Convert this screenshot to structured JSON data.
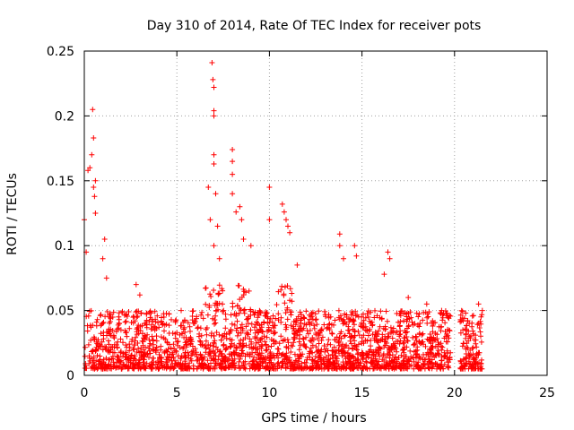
{
  "chart_data": {
    "type": "scatter",
    "title": "Day 310 of 2014, Rate Of TEC Index for receiver pots",
    "xlabel": "GPS time / hours",
    "ylabel": "ROTI / TECUs",
    "xlim": [
      0,
      25
    ],
    "ylim": [
      0,
      0.25
    ],
    "x_ticks": [
      0,
      5,
      10,
      15,
      20,
      25
    ],
    "x_tick_labels": [
      "0",
      "5",
      "10",
      "15",
      "20",
      "25"
    ],
    "y_ticks": [
      0,
      0.05,
      0.1,
      0.15,
      0.2,
      0.25
    ],
    "y_tick_labels": [
      "0",
      "0.05",
      "0.1",
      "0.15",
      "0.2",
      "0.25"
    ],
    "grid": true,
    "marker": "+",
    "series_color": "#ff0000",
    "dense_band": {
      "segments": [
        [
          0.0,
          19.8
        ],
        [
          20.3,
          21.5
        ]
      ],
      "typical_min": 0.005,
      "typical_max": 0.05,
      "note": "thousands of points; typical ROTI 0.005-0.05 TECU/min"
    },
    "notable_points": [
      {
        "x": 0.0,
        "y": 0.12
      },
      {
        "x": 0.1,
        "y": 0.095
      },
      {
        "x": 0.2,
        "y": 0.158
      },
      {
        "x": 0.3,
        "y": 0.16
      },
      {
        "x": 0.4,
        "y": 0.17
      },
      {
        "x": 0.45,
        "y": 0.205
      },
      {
        "x": 0.5,
        "y": 0.183
      },
      {
        "x": 0.5,
        "y": 0.145
      },
      {
        "x": 0.55,
        "y": 0.138
      },
      {
        "x": 0.6,
        "y": 0.125
      },
      {
        "x": 0.6,
        "y": 0.15
      },
      {
        "x": 1.0,
        "y": 0.09
      },
      {
        "x": 1.1,
        "y": 0.105
      },
      {
        "x": 1.2,
        "y": 0.075
      },
      {
        "x": 2.8,
        "y": 0.07
      },
      {
        "x": 3.0,
        "y": 0.062
      },
      {
        "x": 6.7,
        "y": 0.145
      },
      {
        "x": 6.8,
        "y": 0.12
      },
      {
        "x": 6.9,
        "y": 0.241
      },
      {
        "x": 6.95,
        "y": 0.228
      },
      {
        "x": 7.0,
        "y": 0.222
      },
      {
        "x": 7.0,
        "y": 0.204
      },
      {
        "x": 7.0,
        "y": 0.2
      },
      {
        "x": 7.0,
        "y": 0.17
      },
      {
        "x": 7.0,
        "y": 0.163
      },
      {
        "x": 7.1,
        "y": 0.14
      },
      {
        "x": 7.2,
        "y": 0.115
      },
      {
        "x": 7.3,
        "y": 0.09
      },
      {
        "x": 7.0,
        "y": 0.1
      },
      {
        "x": 8.0,
        "y": 0.174
      },
      {
        "x": 8.0,
        "y": 0.165
      },
      {
        "x": 8.0,
        "y": 0.155
      },
      {
        "x": 8.0,
        "y": 0.14
      },
      {
        "x": 8.2,
        "y": 0.126
      },
      {
        "x": 8.5,
        "y": 0.12
      },
      {
        "x": 8.4,
        "y": 0.13
      },
      {
        "x": 8.6,
        "y": 0.105
      },
      {
        "x": 9.0,
        "y": 0.1
      },
      {
        "x": 10.0,
        "y": 0.145
      },
      {
        "x": 10.0,
        "y": 0.12
      },
      {
        "x": 10.7,
        "y": 0.132
      },
      {
        "x": 10.8,
        "y": 0.126
      },
      {
        "x": 10.9,
        "y": 0.12
      },
      {
        "x": 11.0,
        "y": 0.115
      },
      {
        "x": 11.1,
        "y": 0.11
      },
      {
        "x": 11.5,
        "y": 0.085
      },
      {
        "x": 13.8,
        "y": 0.109
      },
      {
        "x": 13.8,
        "y": 0.1
      },
      {
        "x": 14.0,
        "y": 0.09
      },
      {
        "x": 14.6,
        "y": 0.1
      },
      {
        "x": 14.7,
        "y": 0.092
      },
      {
        "x": 16.4,
        "y": 0.095
      },
      {
        "x": 16.5,
        "y": 0.09
      },
      {
        "x": 16.2,
        "y": 0.078
      },
      {
        "x": 17.5,
        "y": 0.06
      },
      {
        "x": 18.5,
        "y": 0.055
      },
      {
        "x": 19.3,
        "y": 0.05
      },
      {
        "x": 20.6,
        "y": 0.048
      },
      {
        "x": 21.3,
        "y": 0.055
      },
      {
        "x": 21.5,
        "y": 0.05
      }
    ]
  }
}
